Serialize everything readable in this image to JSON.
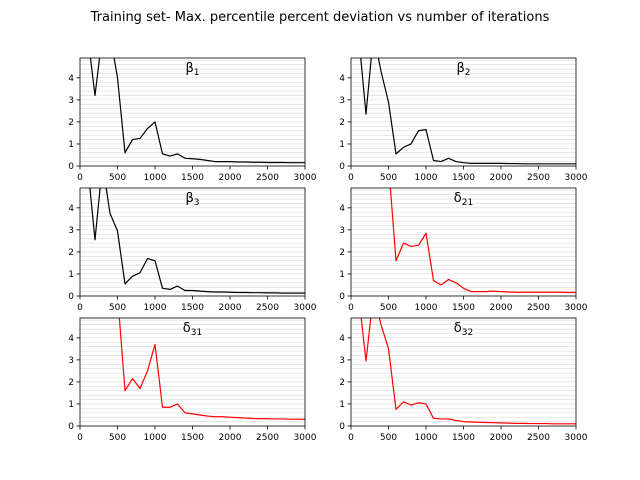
{
  "figure": {
    "suptitle": "Training set- Max. percentile percent deviation vs number of iterations"
  },
  "chart_data": [
    {
      "type": "line",
      "title": "β₁",
      "title_base": "β",
      "title_sub": "1",
      "color": "#000000",
      "xlim": [
        0,
        3000
      ],
      "ylim": [
        0,
        4.9
      ],
      "xticks": [
        0,
        500,
        1000,
        1500,
        2000,
        2500,
        3000
      ],
      "yticks": [
        0,
        1,
        2,
        3,
        4
      ],
      "grid": "horizontal-minor",
      "x": [
        100,
        200,
        300,
        400,
        500,
        600,
        700,
        800,
        900,
        1000,
        1100,
        1200,
        1300,
        1400,
        1500,
        1600,
        1700,
        1800,
        1900,
        2000,
        2100,
        2200,
        2300,
        2400,
        2500,
        2600,
        2700,
        2800,
        2900,
        3000
      ],
      "y": [
        6.0,
        3.2,
        6.0,
        6.0,
        4.0,
        0.6,
        1.2,
        1.25,
        1.7,
        2.0,
        0.55,
        0.45,
        0.55,
        0.35,
        0.33,
        0.3,
        0.25,
        0.2,
        0.2,
        0.2,
        0.18,
        0.18,
        0.17,
        0.17,
        0.16,
        0.16,
        0.16,
        0.15,
        0.15,
        0.15
      ]
    },
    {
      "type": "line",
      "title": "β₂",
      "title_base": "β",
      "title_sub": "2",
      "color": "#000000",
      "xlim": [
        0,
        3000
      ],
      "ylim": [
        0,
        4.9
      ],
      "xticks": [
        0,
        500,
        1000,
        1500,
        2000,
        2500,
        3000
      ],
      "yticks": [
        0,
        1,
        2,
        3,
        4
      ],
      "grid": "horizontal-minor",
      "x": [
        100,
        200,
        300,
        400,
        500,
        600,
        700,
        800,
        900,
        1000,
        1100,
        1200,
        1300,
        1400,
        1500,
        1600,
        1700,
        1800,
        1900,
        2000,
        2100,
        2200,
        2300,
        2400,
        2500,
        2600,
        2700,
        2800,
        2900,
        3000
      ],
      "y": [
        6.0,
        2.35,
        6.0,
        4.3,
        2.9,
        0.55,
        0.85,
        1.0,
        1.6,
        1.65,
        0.25,
        0.2,
        0.35,
        0.2,
        0.15,
        0.12,
        0.12,
        0.12,
        0.12,
        0.12,
        0.11,
        0.11,
        0.1,
        0.1,
        0.1,
        0.1,
        0.1,
        0.1,
        0.1,
        0.1
      ]
    },
    {
      "type": "line",
      "title": "β₃",
      "title_base": "β",
      "title_sub": "3",
      "color": "#000000",
      "xlim": [
        0,
        3000
      ],
      "ylim": [
        0,
        4.9
      ],
      "xticks": [
        0,
        500,
        1000,
        1500,
        2000,
        2500,
        3000
      ],
      "yticks": [
        0,
        1,
        2,
        3,
        4
      ],
      "grid": "horizontal-minor",
      "x": [
        100,
        200,
        300,
        400,
        500,
        600,
        700,
        800,
        900,
        1000,
        1100,
        1200,
        1300,
        1400,
        1500,
        1600,
        1700,
        1800,
        1900,
        2000,
        2100,
        2200,
        2300,
        2400,
        2500,
        2600,
        2700,
        2800,
        2900,
        3000
      ],
      "y": [
        6.0,
        2.55,
        6.0,
        3.75,
        2.95,
        0.55,
        0.9,
        1.05,
        1.7,
        1.6,
        0.35,
        0.3,
        0.45,
        0.25,
        0.25,
        0.22,
        0.2,
        0.18,
        0.18,
        0.17,
        0.16,
        0.16,
        0.15,
        0.15,
        0.14,
        0.14,
        0.13,
        0.13,
        0.13,
        0.13
      ]
    },
    {
      "type": "line",
      "title": "δ₂₁",
      "title_base": "δ",
      "title_sub": "21",
      "color": "#ff0000",
      "xlim": [
        0,
        3000
      ],
      "ylim": [
        0,
        4.9
      ],
      "xticks": [
        0,
        500,
        1000,
        1500,
        2000,
        2500,
        3000
      ],
      "yticks": [
        0,
        1,
        2,
        3,
        4
      ],
      "grid": "horizontal-minor",
      "x": [
        500,
        600,
        700,
        800,
        900,
        1000,
        1100,
        1200,
        1300,
        1400,
        1500,
        1600,
        1700,
        1800,
        1900,
        2000,
        2100,
        2200,
        2300,
        2400,
        2500,
        2600,
        2700,
        2800,
        2900,
        3000
      ],
      "y": [
        6.0,
        1.6,
        2.4,
        2.25,
        2.3,
        2.85,
        0.7,
        0.5,
        0.75,
        0.6,
        0.35,
        0.2,
        0.2,
        0.2,
        0.22,
        0.2,
        0.18,
        0.17,
        0.17,
        0.17,
        0.17,
        0.17,
        0.17,
        0.17,
        0.16,
        0.16
      ]
    },
    {
      "type": "line",
      "title": "δ₃₁",
      "title_base": "δ",
      "title_sub": "31",
      "color": "#ff0000",
      "xlim": [
        0,
        3000
      ],
      "ylim": [
        0,
        4.9
      ],
      "xticks": [
        0,
        500,
        1000,
        1500,
        2000,
        2500,
        3000
      ],
      "yticks": [
        0,
        1,
        2,
        3,
        4
      ],
      "grid": "horizontal-minor",
      "x": [
        500,
        600,
        700,
        800,
        900,
        1000,
        1100,
        1200,
        1300,
        1400,
        1500,
        1600,
        1700,
        1800,
        1900,
        2000,
        2100,
        2200,
        2300,
        2400,
        2500,
        2600,
        2700,
        2800,
        2900,
        3000
      ],
      "y": [
        6.0,
        1.6,
        2.15,
        1.7,
        2.5,
        3.7,
        0.85,
        0.85,
        1.0,
        0.6,
        0.55,
        0.5,
        0.45,
        0.42,
        0.42,
        0.4,
        0.38,
        0.36,
        0.34,
        0.33,
        0.33,
        0.32,
        0.32,
        0.31,
        0.31,
        0.3
      ]
    },
    {
      "type": "line",
      "title": "δ₃₂",
      "title_base": "δ",
      "title_sub": "32",
      "color": "#ff0000",
      "xlim": [
        0,
        3000
      ],
      "ylim": [
        0,
        4.9
      ],
      "xticks": [
        0,
        500,
        1000,
        1500,
        2000,
        2500,
        3000
      ],
      "yticks": [
        0,
        1,
        2,
        3,
        4
      ],
      "grid": "horizontal-minor",
      "x": [
        100,
        200,
        300,
        400,
        500,
        600,
        700,
        800,
        900,
        1000,
        1100,
        1200,
        1300,
        1400,
        1500,
        1600,
        1700,
        1800,
        1900,
        2000,
        2100,
        2200,
        2300,
        2400,
        2500,
        2600,
        2700,
        2800,
        2900,
        3000
      ],
      "y": [
        6.0,
        2.95,
        6.0,
        4.6,
        3.5,
        0.75,
        1.1,
        0.95,
        1.05,
        1.0,
        0.35,
        0.32,
        0.32,
        0.25,
        0.2,
        0.18,
        0.17,
        0.16,
        0.15,
        0.14,
        0.13,
        0.12,
        0.12,
        0.11,
        0.11,
        0.11,
        0.1,
        0.1,
        0.1,
        0.1
      ]
    }
  ]
}
